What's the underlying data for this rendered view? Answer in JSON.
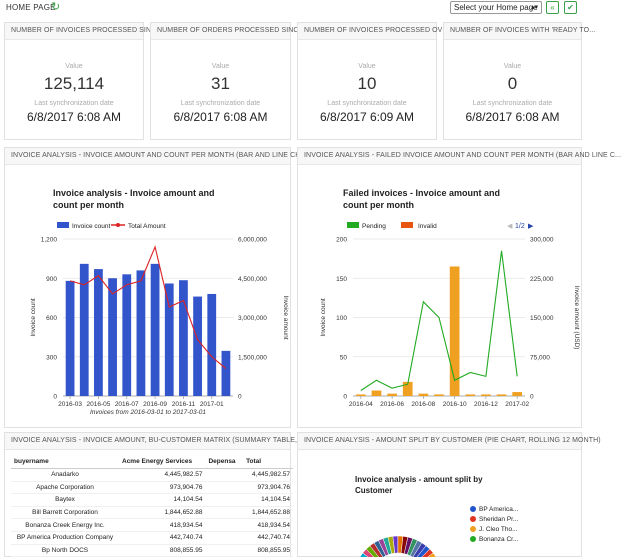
{
  "topbar": {
    "title": "HOME PAGE",
    "refresh_icon": "refresh-icon",
    "home_select": "Select your Home page",
    "btn1_icon": "collapse-icon",
    "btn2_icon": "check-icon"
  },
  "kpis": [
    {
      "header": "NUMBER OF INVOICES PROCESSED SIN...",
      "value_label": "Value",
      "value": "125,114",
      "sync_label": "Last synchronization date",
      "sync_date": "6/8/2017  6:08 AM"
    },
    {
      "header": "NUMBER OF ORDERS PROCESSED SINC...",
      "value_label": "Value",
      "value": "31",
      "sync_label": "Last synchronization date",
      "sync_date": "6/8/2017  6:08 AM"
    },
    {
      "header": "NUMBER OF INVOICES PROCESSED OVE...",
      "value_label": "Value",
      "value": "10",
      "sync_label": "Last synchronization date",
      "sync_date": "6/8/2017  6:09 AM"
    },
    {
      "header": "NUMBER OF INVOICES WITH 'READY TO...",
      "value_label": "Value",
      "value": "0",
      "sync_label": "Last synchronization date",
      "sync_date": "6/8/2017  6:08 AM"
    }
  ],
  "panels": {
    "chart1_header": "INVOICE ANALYSIS - INVOICE AMOUNT AND COUNT PER MONTH (BAR AND LINE CHART...",
    "chart2_header": "INVOICE ANALYSIS - FAILED INVOICE AMOUNT AND COUNT PER MONTH (BAR AND LINE C...",
    "table_header": "INVOICE ANALYSIS - INVOICE AMOUNT, BU-CUSTOMER MATRIX (SUMMARY TABLE, ROL...",
    "pie_header": "INVOICE ANALYSIS - AMOUNT SPLIT BY CUSTOMER (PIE CHART, ROLLING 12 MONTH)"
  },
  "chart_data": [
    {
      "type": "bar",
      "title": "Invoice analysis - Invoice amount and count per month",
      "title_line1": "Invoice analysis - Invoice amount and",
      "title_line2": "count per month",
      "ylabel": "Invoice count",
      "y2label": "Invoice amount",
      "footnote": "Invoices from 2016-03-01 to 2017-03-01",
      "legend_position": "top-left",
      "ylim": [
        0,
        1200
      ],
      "y2lim": [
        0,
        6000000
      ],
      "yticks": [
        "0",
        "300",
        "600",
        "900",
        "1,200"
      ],
      "y2ticks": [
        "0",
        "1,500,000",
        "3,000,000",
        "4,500,000",
        "6,000,000"
      ],
      "xticks": [
        "2016-03",
        "2016-05",
        "2016-07",
        "2016-09",
        "2016-11",
        "2017-01"
      ],
      "x": [
        "2016-03",
        "2016-04",
        "2016-05",
        "2016-06",
        "2016-07",
        "2016-08",
        "2016-09",
        "2016-10",
        "2016-11",
        "2016-12",
        "2017-01",
        "2017-02"
      ],
      "series": [
        {
          "name": "Invoice count",
          "type": "bar",
          "color": "#3355cc",
          "values": [
            880,
            1010,
            970,
            900,
            930,
            960,
            1010,
            860,
            885,
            760,
            780,
            345
          ]
        },
        {
          "name": "Total Amount",
          "type": "line",
          "color": "#dd2222",
          "values": [
            4400000,
            4250000,
            4600000,
            3900000,
            4250000,
            4400000,
            5700000,
            3400000,
            3650000,
            2150000,
            1500000,
            1050000
          ]
        }
      ]
    },
    {
      "type": "bar",
      "title": "Failed invoices - Invoice amount and count per month",
      "title_line1": "Failed invoices - Invoice amount and",
      "title_line2": "count per month",
      "ylabel": "Invoice count",
      "y2label": "Invoice amount (USD)",
      "legend_position": "top-left",
      "legend_pager": "1/2",
      "ylim": [
        0,
        200
      ],
      "y2lim": [
        0,
        300000
      ],
      "yticks": [
        "0",
        "50",
        "100",
        "150",
        "200"
      ],
      "y2ticks": [
        "0",
        "75,000",
        "150,000",
        "225,000",
        "300,000"
      ],
      "xticks": [
        "2016-04",
        "2016-06",
        "2016-08",
        "2016-10",
        "2016-12",
        "2017-02"
      ],
      "x": [
        "2016-04",
        "2016-05",
        "2016-06",
        "2016-07",
        "2016-08",
        "2016-09",
        "2016-10",
        "2016-11",
        "2016-12",
        "2017-01",
        "2017-02"
      ],
      "series": [
        {
          "name": "Pending",
          "type": "line",
          "color": "#22aa22",
          "values": [
            7,
            20,
            10,
            15,
            120,
            100,
            20,
            30,
            25,
            185,
            25
          ]
        },
        {
          "name": "Invalid",
          "type": "bar",
          "color": "#f0a020",
          "values": [
            2,
            7,
            3,
            18,
            3,
            2,
            165,
            2,
            2,
            2,
            5
          ]
        }
      ]
    }
  ],
  "table": {
    "columns": [
      "buyername",
      "Acme Energy Services",
      "Depensa",
      "Total"
    ],
    "rows": [
      [
        "Anadarko",
        "4,445,982.57",
        "",
        "4,445,982.57"
      ],
      [
        "Apache Corporation",
        "973,904.76",
        "",
        "973,904.76"
      ],
      [
        "Baytex",
        "14,104.54",
        "",
        "14,104.54"
      ],
      [
        "Bill Barrett Corporation",
        "1,844,652.88",
        "",
        "1,844,652.88"
      ],
      [
        "Bonanza Creek Energy Inc.",
        "418,934.54",
        "",
        "418,934.54"
      ],
      [
        "BP America Production Company",
        "442,740.74",
        "",
        "442,740.74"
      ],
      [
        "Bp North DOCS",
        "808,855.95",
        "",
        "808,855.95"
      ]
    ]
  },
  "pie": {
    "title_line1": "Invoice analysis - amount split by",
    "title_line2": "Customer",
    "legend": [
      {
        "label": "BP America...",
        "color": "#2255cc"
      },
      {
        "label": "Sheridan Pr...",
        "color": "#e03322"
      },
      {
        "label": "J. Cleo Tho...",
        "color": "#f0a020"
      },
      {
        "label": "Bonanza Cr...",
        "color": "#22aa22"
      }
    ]
  }
}
